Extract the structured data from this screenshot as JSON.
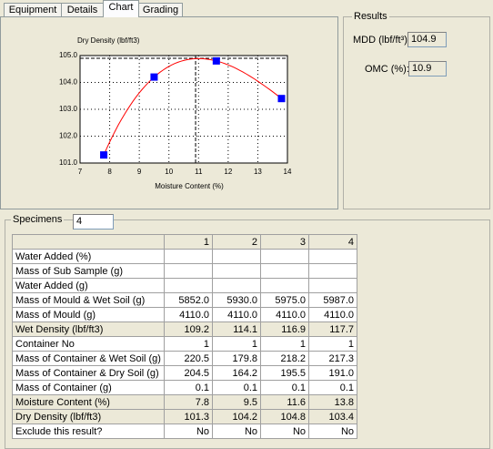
{
  "tabs": [
    "Equipment",
    "Details",
    "Chart",
    "Grading"
  ],
  "chart_data": {
    "type": "scatter",
    "y_label": "Dry Density (lbf/ft3)",
    "x_label": "Moisture Content (%)",
    "x": [
      7.8,
      9.5,
      11.6,
      13.8
    ],
    "values": [
      101.3,
      104.2,
      104.8,
      103.4
    ],
    "color": "#0000ff",
    "fit_color": "#ff0000",
    "grid": true,
    "xlim": [
      7,
      14
    ],
    "xticks": [
      7,
      8,
      9,
      10,
      11,
      12,
      13,
      14
    ],
    "ylim": [
      101,
      105
    ],
    "yticks": [
      {
        "value": 101,
        "label": "101.0"
      },
      {
        "value": 102,
        "label": "102.0"
      },
      {
        "value": 103,
        "label": "103.0"
      },
      {
        "value": 104,
        "label": "104.0"
      },
      {
        "value": 105,
        "label": "105.0"
      }
    ]
  },
  "results": {
    "title": "Results",
    "mdd_label": "MDD (lbf/ft³):",
    "mdd": 104.9,
    "omc_label": "OMC (%):",
    "omc": 10.9
  },
  "specimens": {
    "label": "Specimens",
    "count": "4"
  },
  "table": {
    "columns": [
      "1",
      "2",
      "3",
      "4"
    ],
    "rows": [
      {
        "label": "Water Added (%)",
        "cells": [
          "",
          "",
          "",
          ""
        ]
      },
      {
        "label": "Mass of Sub Sample (g)",
        "cells": [
          "",
          "",
          "",
          ""
        ]
      },
      {
        "label": "Water Added (g)",
        "cells": [
          "",
          "",
          "",
          ""
        ]
      },
      {
        "label": "Mass of Mould & Wet Soil (g)",
        "cells": [
          "5852.0",
          "5930.0",
          "5975.0",
          "5987.0"
        ]
      },
      {
        "label": "Mass of Mould (g)",
        "cells": [
          "4110.0",
          "4110.0",
          "4110.0",
          "4110.0"
        ]
      },
      {
        "label": "Wet Density (lbf/ft3)",
        "cells": [
          "109.2",
          "114.1",
          "116.9",
          "117.7"
        ],
        "shaded": true
      },
      {
        "label": "Container No",
        "cells": [
          "1",
          "1",
          "1",
          "1"
        ]
      },
      {
        "label": "Mass of Container & Wet Soil (g)",
        "cells": [
          "220.5",
          "179.8",
          "218.2",
          "217.3"
        ]
      },
      {
        "label": "Mass of Container & Dry Soil (g)",
        "cells": [
          "204.5",
          "164.2",
          "195.5",
          "191.0"
        ]
      },
      {
        "label": "Mass of Container (g)",
        "cells": [
          "0.1",
          "0.1",
          "0.1",
          "0.1"
        ]
      },
      {
        "label": "Moisture Content (%)",
        "cells": [
          "7.8",
          "9.5",
          "11.6",
          "13.8"
        ],
        "shaded": true
      },
      {
        "label": "Dry Density (lbf/ft3)",
        "cells": [
          "101.3",
          "104.2",
          "104.8",
          "103.4"
        ],
        "shaded": true
      },
      {
        "label": "Exclude this result?",
        "cells": [
          "No",
          "No",
          "No",
          "No"
        ]
      }
    ]
  }
}
